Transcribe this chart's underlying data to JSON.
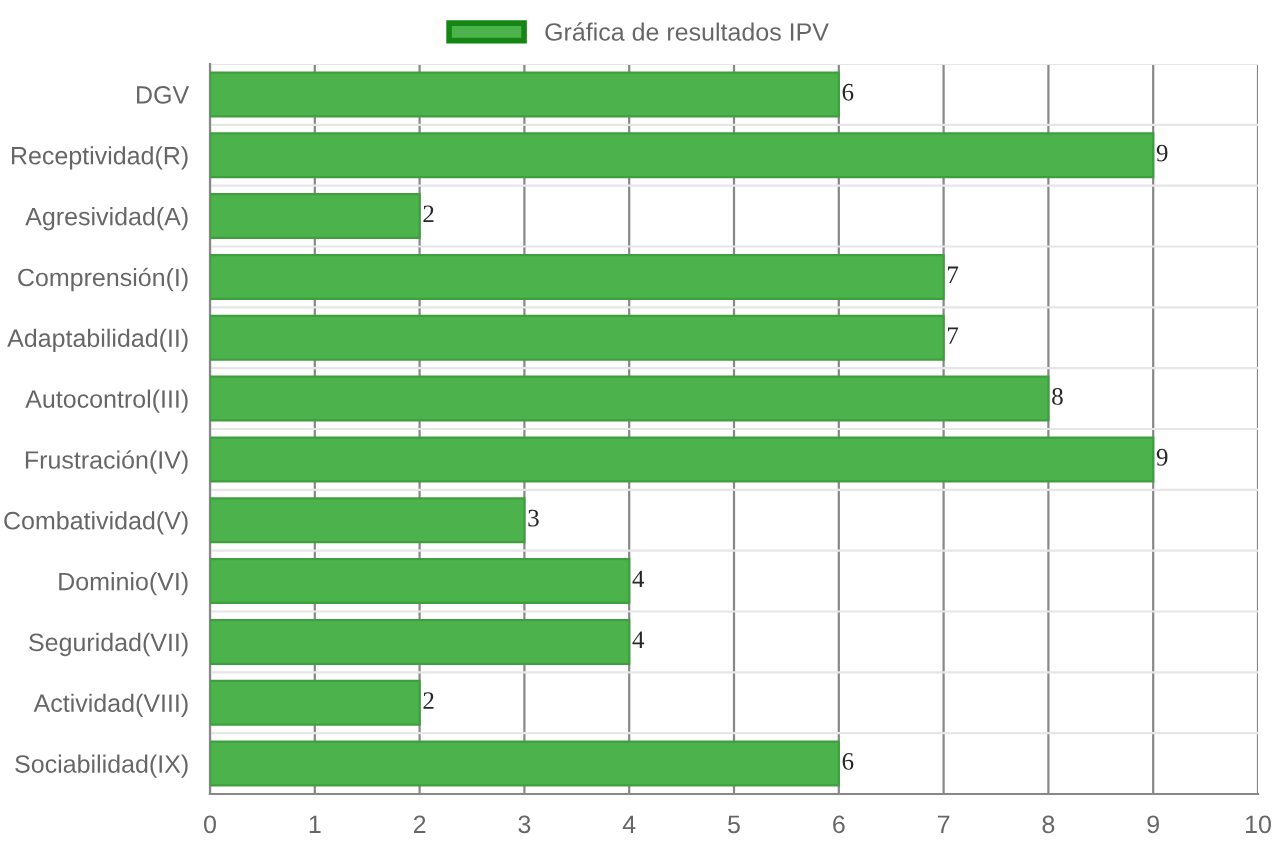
{
  "chart_data": {
    "type": "bar",
    "orientation": "horizontal",
    "categories": [
      "DGV",
      "Receptividad(R)",
      "Agresividad(A)",
      "Comprensión(I)",
      "Adaptabilidad(II)",
      "Autocontrol(III)",
      "Frustración(IV)",
      "Combatividad(V)",
      "Dominio(VI)",
      "Seguridad(VII)",
      "Actividad(VIII)",
      "Sociabilidad(IX)"
    ],
    "series": [
      {
        "name": "Gráfica de resultados IPV",
        "color": "#4cb34c",
        "values": [
          6,
          9,
          2,
          7,
          7,
          8,
          9,
          3,
          4,
          4,
          2,
          6
        ]
      }
    ],
    "xlim": [
      0,
      10
    ],
    "xticks": [
      0,
      1,
      2,
      3,
      4,
      5,
      6,
      7,
      8,
      9,
      10
    ],
    "grid": true,
    "legend": "top",
    "data_labels": true
  }
}
